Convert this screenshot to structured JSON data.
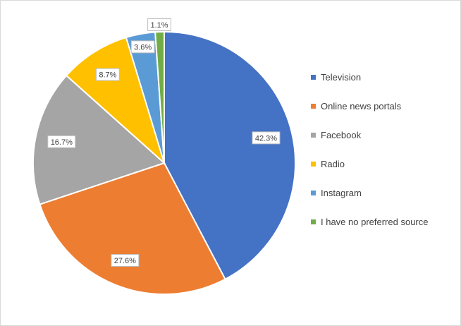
{
  "chart_data": {
    "type": "pie",
    "title": "",
    "categories": [
      "Television",
      "Online news portals",
      "Facebook",
      "Radio",
      "Instagram",
      "I have no preferred source"
    ],
    "values": [
      42.3,
      27.6,
      16.7,
      8.7,
      3.6,
      1.1
    ],
    "labels": [
      "42.3%",
      "27.6%",
      "16.7%",
      "8.7%",
      "3.6%",
      "1.1%"
    ],
    "colors": [
      "#4472c4",
      "#ed7d31",
      "#a5a5a5",
      "#ffc000",
      "#5b9bd5",
      "#70ad47"
    ],
    "start_angle": "12 o'clock",
    "direction": "clockwise",
    "legend_position": "right"
  }
}
